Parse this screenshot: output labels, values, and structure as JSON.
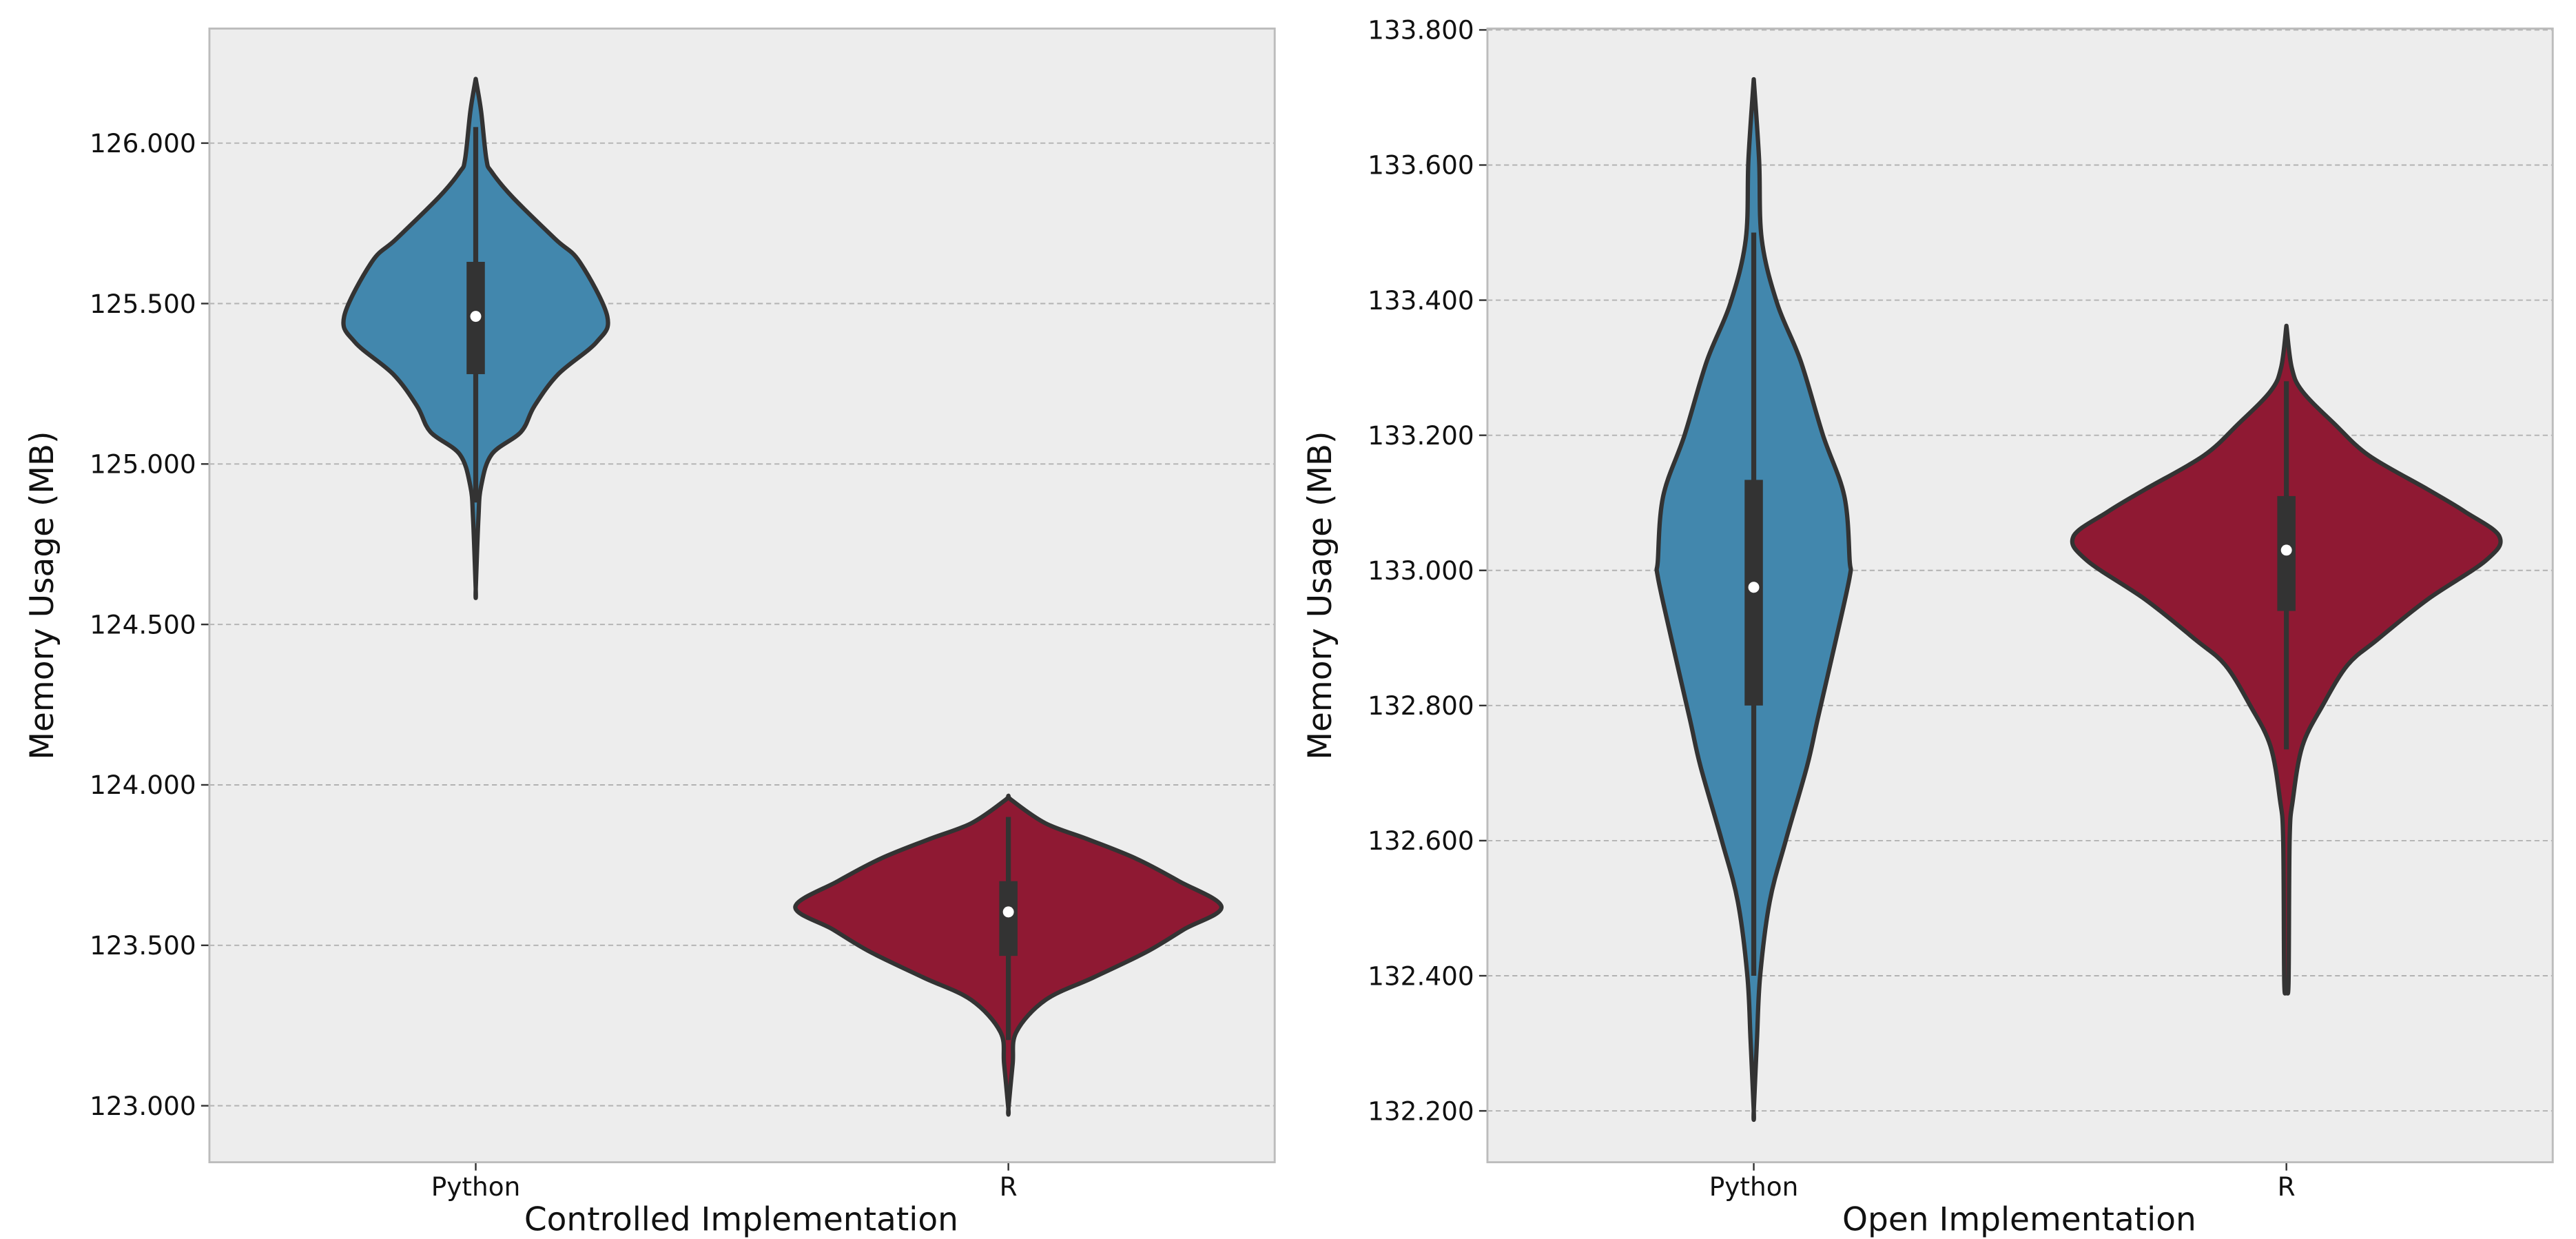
{
  "chart_data": [
    {
      "type": "violin",
      "xlabel": "Controlled Implementation",
      "ylabel": "Memory Usage (MB)",
      "ylim": [
        122.824,
        126.357
      ],
      "yticks": [
        123.0,
        123.5,
        124.0,
        124.5,
        125.0,
        125.5,
        126.0
      ],
      "ytick_labels": [
        "123.000",
        "123.500",
        "124.000",
        "124.500",
        "125.000",
        "125.500",
        "126.000"
      ],
      "categories": [
        "Python",
        "R"
      ],
      "grid": "y-dashed",
      "series": [
        {
          "name": "Python",
          "color": "#4287ad",
          "min": 124.61,
          "max": 126.2,
          "q1": 125.28,
          "median": 125.46,
          "q3": 125.63,
          "whisker_low": 124.88,
          "whisker_high": 126.05,
          "density_halfwidth": [
            [
              126.2,
              0
            ],
            [
              126.1,
              0.01
            ],
            [
              125.95,
              0.02
            ],
            [
              125.91,
              0.03
            ],
            [
              125.83,
              0.07
            ],
            [
              125.7,
              0.15
            ],
            [
              125.63,
              0.195
            ],
            [
              125.46,
              0.247
            ],
            [
              125.38,
              0.227
            ],
            [
              125.28,
              0.155
            ],
            [
              125.18,
              0.11
            ],
            [
              125.1,
              0.085
            ],
            [
              125.03,
              0.03
            ],
            [
              124.93,
              0.01
            ],
            [
              124.83,
              0.005
            ],
            [
              124.61,
              0
            ]
          ]
        },
        {
          "name": "R",
          "color": "#8f1933",
          "min": 122.99,
          "max": 123.966,
          "q1": 123.467,
          "median": 123.604,
          "q3": 123.7,
          "whisker_low": 123.205,
          "whisker_high": 123.9,
          "density_halfwidth": [
            [
              123.966,
              0
            ],
            [
              123.95,
              0.008
            ],
            [
              123.88,
              0.07
            ],
            [
              123.83,
              0.15
            ],
            [
              123.77,
              0.24
            ],
            [
              123.7,
              0.32
            ],
            [
              123.62,
              0.4
            ],
            [
              123.55,
              0.33
            ],
            [
              123.48,
              0.26
            ],
            [
              123.4,
              0.16
            ],
            [
              123.33,
              0.07
            ],
            [
              123.23,
              0.015
            ],
            [
              123.13,
              0.008
            ],
            [
              122.99,
              0
            ]
          ]
        }
      ]
    },
    {
      "type": "violin",
      "xlabel": "Open Implementation",
      "ylabel": "Memory Usage (MB)",
      "ylim": [
        132.124,
        133.802
      ],
      "yticks": [
        132.2,
        132.4,
        132.6,
        132.8,
        133.0,
        133.2,
        133.4,
        133.6,
        133.8
      ],
      "ytick_labels": [
        "132.200",
        "132.400",
        "132.600",
        "132.800",
        "133.000",
        "133.200",
        "133.400",
        "133.600",
        "133.800"
      ],
      "categories": [
        "Python",
        "R"
      ],
      "grid": "y-dashed",
      "series": [
        {
          "name": "Python",
          "color": "#4287ad",
          "min": 132.2,
          "max": 133.727,
          "q1": 132.8,
          "median": 132.975,
          "q3": 133.134,
          "whisker_low": 132.4,
          "whisker_high": 133.5,
          "density_halfwidth": [
            [
              133.727,
              0
            ],
            [
              133.608,
              0.01
            ],
            [
              133.49,
              0.015
            ],
            [
              133.395,
              0.044
            ],
            [
              133.31,
              0.088
            ],
            [
              133.2,
              0.13
            ],
            [
              133.11,
              0.17
            ],
            [
              133.015,
              0.18
            ],
            [
              132.99,
              0.18
            ],
            [
              132.9,
              0.155
            ],
            [
              132.78,
              0.12
            ],
            [
              132.71,
              0.1
            ],
            [
              132.6,
              0.06
            ],
            [
              132.51,
              0.03
            ],
            [
              132.4,
              0.012
            ],
            [
              132.305,
              0.006
            ],
            [
              132.2,
              0
            ]
          ]
        },
        {
          "name": "R",
          "color": "#8f1933",
          "min": 132.388,
          "max": 133.362,
          "q1": 132.94,
          "median": 133.03,
          "q3": 133.11,
          "whisker_low": 132.735,
          "whisker_high": 133.28,
          "density_halfwidth": [
            [
              133.362,
              0
            ],
            [
              133.3,
              0.01
            ],
            [
              133.265,
              0.03
            ],
            [
              133.217,
              0.09
            ],
            [
              133.17,
              0.155
            ],
            [
              133.12,
              0.265
            ],
            [
              133.087,
              0.335
            ],
            [
              133.05,
              0.4
            ],
            [
              133.015,
              0.375
            ],
            [
              132.957,
              0.265
            ],
            [
              132.897,
              0.17
            ],
            [
              132.86,
              0.115
            ],
            [
              132.8,
              0.068
            ],
            [
              132.74,
              0.03
            ],
            [
              132.66,
              0.012
            ],
            [
              132.6,
              0.006
            ],
            [
              132.39,
              0.004
            ],
            [
              132.388,
              0
            ]
          ]
        }
      ]
    }
  ]
}
